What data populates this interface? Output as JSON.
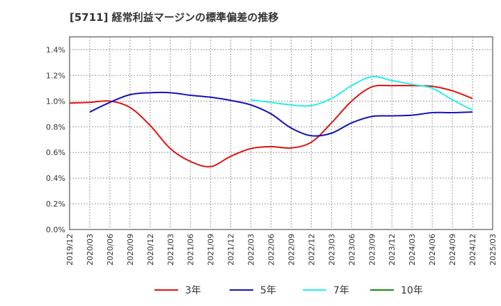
{
  "chart_data": {
    "type": "line",
    "title": "[5711]  経常利益マージンの標準偏差の推移",
    "xlabel": "",
    "ylabel": "",
    "ylim": [
      0,
      1.5
    ],
    "yticks": [
      "0.0%",
      "0.2%",
      "0.4%",
      "0.6%",
      "0.8%",
      "1.0%",
      "1.2%",
      "1.4%"
    ],
    "categories": [
      "2019/12",
      "2020/03",
      "2020/06",
      "2020/09",
      "2020/12",
      "2021/03",
      "2021/06",
      "2021/09",
      "2021/12",
      "2022/03",
      "2022/06",
      "2022/09",
      "2022/12",
      "2023/03",
      "2023/06",
      "2023/09",
      "2023/12",
      "2024/03",
      "2024/06",
      "2024/09",
      "2024/12",
      "2025/03"
    ],
    "grid": true,
    "legend_position": "bottom",
    "series": [
      {
        "name": "3年",
        "color": "#dd1111",
        "values": [
          0.985,
          0.99,
          1.0,
          0.95,
          0.81,
          0.63,
          0.53,
          0.49,
          0.57,
          0.63,
          0.645,
          0.635,
          0.68,
          0.83,
          1.0,
          1.11,
          1.12,
          1.12,
          1.115,
          1.08,
          1.02,
          null
        ]
      },
      {
        "name": "5年",
        "color": "#1111bb",
        "values": [
          null,
          0.915,
          0.99,
          1.05,
          1.065,
          1.065,
          1.045,
          1.03,
          1.005,
          0.97,
          0.9,
          0.79,
          0.73,
          0.75,
          0.83,
          0.88,
          0.885,
          0.89,
          0.91,
          0.91,
          0.915,
          null
        ]
      },
      {
        "name": "7年",
        "color": "#22eeee",
        "values": [
          null,
          null,
          null,
          null,
          null,
          null,
          null,
          null,
          null,
          1.01,
          0.99,
          0.97,
          0.965,
          1.02,
          1.12,
          1.19,
          1.16,
          1.13,
          1.1,
          1.01,
          0.93,
          null
        ]
      },
      {
        "name": "10年",
        "color": "#118811",
        "values": [
          null,
          null,
          null,
          null,
          null,
          null,
          null,
          null,
          null,
          null,
          null,
          null,
          null,
          null,
          null,
          null,
          null,
          null,
          null,
          null,
          null,
          null
        ]
      }
    ]
  }
}
